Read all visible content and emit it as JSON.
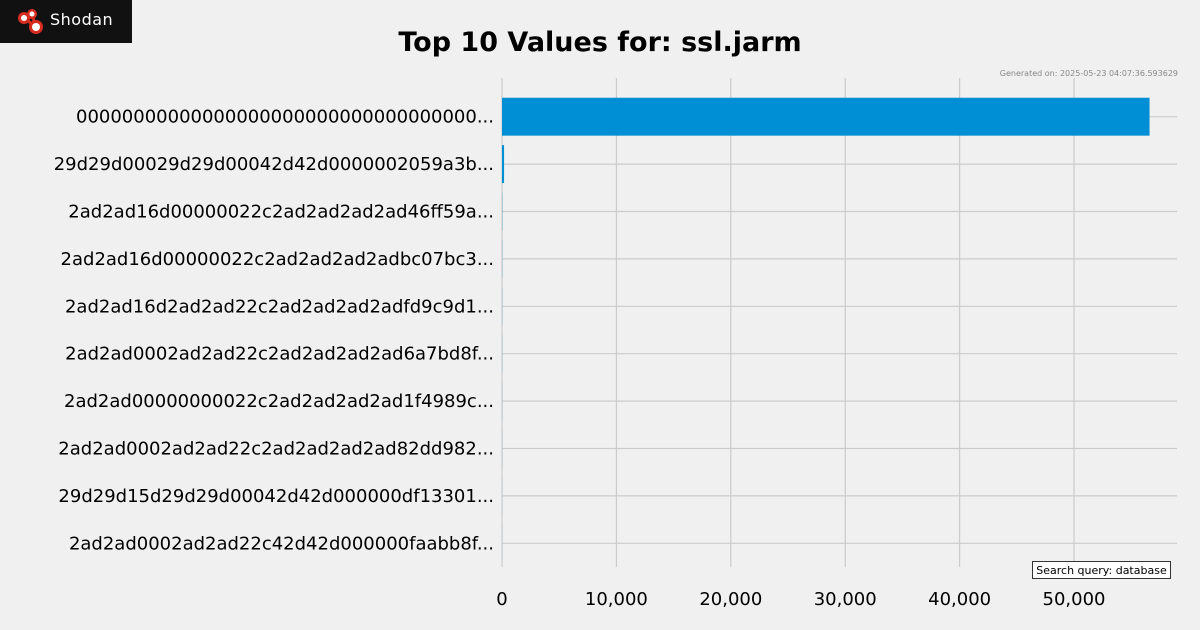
{
  "brand": {
    "logo_text": "Shodan",
    "logo_icon": "shodan-logo-icon",
    "colors": {
      "logo_bg": "#111111",
      "logo_red": "#d62d20"
    }
  },
  "generated_text": "Generated on: 2025-05-23 04:07:36.593629",
  "search_query_text": "Search query: database",
  "colors": {
    "bar": "#008fd5",
    "grid": "#cbcbcb",
    "background": "#f0f0f0"
  },
  "chart_data": {
    "type": "bar",
    "orientation": "horizontal",
    "title": "Top 10 Values for: ssl.jarm",
    "xlabel": "",
    "ylabel": "",
    "categories": [
      "00000000000000000000000000000000000...",
      "29d29d00029d29d00042d42d0000002059a3b...",
      "2ad2ad16d00000022c2ad2ad2ad2ad46ff59a...",
      "2ad2ad16d00000022c2ad2ad2ad2adbc07bc3...",
      "2ad2ad16d2ad2ad22c2ad2ad2ad2adfd9c9d1...",
      "2ad2ad0002ad2ad22c2ad2ad2ad2ad6a7bd8f...",
      "2ad2ad00000000022c2ad2ad2ad2ad1f4989c...",
      "2ad2ad0002ad2ad22c2ad2ad2ad2ad82dd982...",
      "29d29d15d29d29d00042d42d000000df13301...",
      "2ad2ad0002ad2ad22c42d42d000000faabb8f..."
    ],
    "values": [
      56600,
      180,
      20,
      15,
      12,
      10,
      8,
      7,
      6,
      5
    ],
    "xlim": [
      0,
      59000
    ],
    "xticks": [
      0,
      10000,
      20000,
      30000,
      40000,
      50000
    ],
    "xtick_labels": [
      "0",
      "10,000",
      "20,000",
      "30,000",
      "40,000",
      "50,000"
    ],
    "grid": true,
    "legend": "none"
  }
}
